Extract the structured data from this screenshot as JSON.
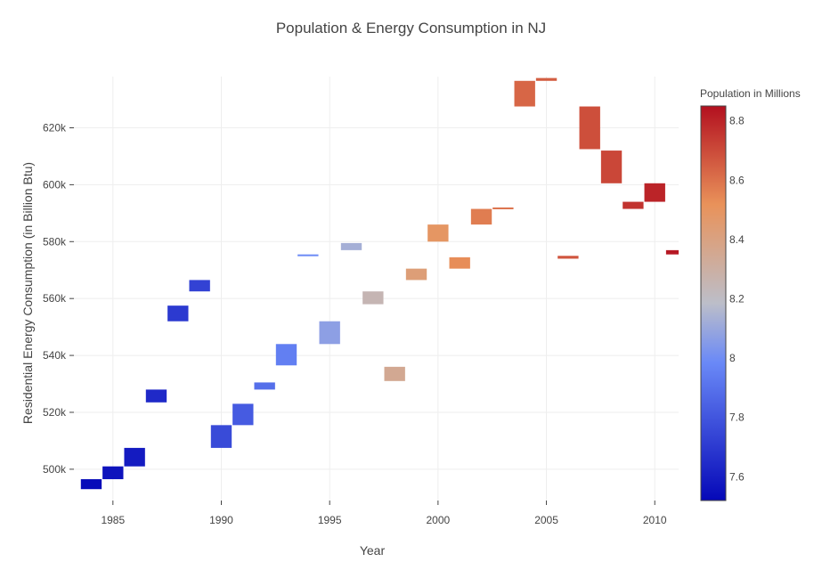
{
  "chart_data": {
    "type": "bar",
    "subtype": "floating-waterfall",
    "title": "Population & Energy Consumption in NJ",
    "xlabel": "Year",
    "ylabel": "Residential Energy Consumption (in Billion Btu)",
    "xlim": [
      1983.2,
      2011.1
    ],
    "ylim": [
      489000,
      638000
    ],
    "xticks": [
      1985,
      1990,
      1995,
      2000,
      2005,
      2010
    ],
    "yticks": [
      500000,
      520000,
      540000,
      560000,
      580000,
      600000,
      620000
    ],
    "ytick_labels": [
      "500k",
      "520k",
      "540k",
      "560k",
      "580k",
      "600k",
      "620k"
    ],
    "grid": true,
    "colorbar": {
      "title": "Population in Millions",
      "range": [
        7.52,
        8.85
      ],
      "ticks": [
        7.6,
        7.8,
        8,
        8.2,
        8.4,
        8.6,
        8.8
      ],
      "tick_labels": [
        "7.6",
        "7.8",
        "8",
        "8.2",
        "8.4",
        "8.6",
        "8.8"
      ],
      "colorscale": [
        [
          0,
          "#0508b8"
        ],
        [
          0.35,
          "#6a89f7"
        ],
        [
          0.5,
          "#bcbec9"
        ],
        [
          0.75,
          "#e9925a"
        ],
        [
          1,
          "#b3101f"
        ]
      ]
    },
    "bars": [
      {
        "year": 1984,
        "low": 493000,
        "high": 496500,
        "population": 7.53
      },
      {
        "year": 1985,
        "low": 496500,
        "high": 501000,
        "population": 7.56
      },
      {
        "year": 1986,
        "low": 501000,
        "high": 507500,
        "population": 7.59
      },
      {
        "year": 1987,
        "low": 523500,
        "high": 528000,
        "population": 7.64
      },
      {
        "year": 1988,
        "low": 552000,
        "high": 557500,
        "population": 7.7
      },
      {
        "year": 1989,
        "low": 562500,
        "high": 566500,
        "population": 7.73
      },
      {
        "year": 1990,
        "low": 507500,
        "high": 515500,
        "population": 7.76
      },
      {
        "year": 1991,
        "low": 515500,
        "high": 523000,
        "population": 7.82
      },
      {
        "year": 1992,
        "low": 528000,
        "high": 530500,
        "population": 7.89
      },
      {
        "year": 1993,
        "low": 536500,
        "high": 544000,
        "population": 7.95
      },
      {
        "year": 1994,
        "low": 575000,
        "high": 575500,
        "population": 7.99
      },
      {
        "year": 1995,
        "low": 544000,
        "high": 552000,
        "population": 8.07
      },
      {
        "year": 1996,
        "low": 577000,
        "high": 579500,
        "population": 8.13
      },
      {
        "year": 1997,
        "low": 558000,
        "high": 562500,
        "population": 8.25
      },
      {
        "year": 1998,
        "low": 531000,
        "high": 536000,
        "population": 8.35
      },
      {
        "year": 1999,
        "low": 566500,
        "high": 570500,
        "population": 8.43
      },
      {
        "year": 2000,
        "low": 580000,
        "high": 586000,
        "population": 8.49
      },
      {
        "year": 2001,
        "low": 570500,
        "high": 574500,
        "population": 8.53
      },
      {
        "year": 2002,
        "low": 586000,
        "high": 591500,
        "population": 8.57
      },
      {
        "year": 2003,
        "low": 591500,
        "high": 592000,
        "population": 8.6
      },
      {
        "year": 2004,
        "low": 627500,
        "high": 636500,
        "population": 8.63
      },
      {
        "year": 2005,
        "low": 636500,
        "high": 637500,
        "population": 8.65
      },
      {
        "year": 2006,
        "low": 574000,
        "high": 575000,
        "population": 8.67
      },
      {
        "year": 2007,
        "low": 612500,
        "high": 627500,
        "population": 8.69
      },
      {
        "year": 2008,
        "low": 600500,
        "high": 612000,
        "population": 8.71
      },
      {
        "year": 2009,
        "low": 591500,
        "high": 594000,
        "population": 8.76
      },
      {
        "year": 2010,
        "low": 594000,
        "high": 600500,
        "population": 8.8
      },
      {
        "year": 2011,
        "low": 575500,
        "high": 577000,
        "population": 8.83
      }
    ]
  }
}
